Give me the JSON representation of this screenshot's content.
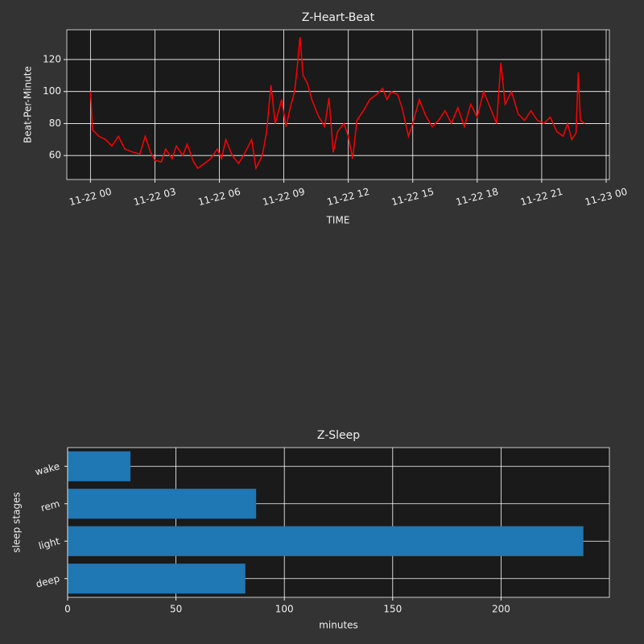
{
  "chart_data": [
    {
      "type": "line",
      "title": "Z-Heart-Beat",
      "x_label": "TIME",
      "y_label": "Beat-Per-Minute",
      "x": [
        0.0,
        0.1,
        0.4,
        0.7,
        1.0,
        1.3,
        1.6,
        2.0,
        2.3,
        2.55,
        2.8,
        3.0,
        3.3,
        3.5,
        3.8,
        4.0,
        4.3,
        4.5,
        4.8,
        5.0,
        5.3,
        5.6,
        5.9,
        6.1,
        6.3,
        6.6,
        6.9,
        7.2,
        7.5,
        7.7,
        8.0,
        8.2,
        8.4,
        8.6,
        8.9,
        9.1,
        9.3,
        9.5,
        9.6,
        9.75,
        9.9,
        10.1,
        10.3,
        10.6,
        10.9,
        11.1,
        11.3,
        11.5,
        11.8,
        12.0,
        12.2,
        12.4,
        12.7,
        13.0,
        13.3,
        13.6,
        13.8,
        14.0,
        14.3,
        14.5,
        14.8,
        15.0,
        15.3,
        15.6,
        15.9,
        16.2,
        16.5,
        16.8,
        17.1,
        17.4,
        17.7,
        18.0,
        18.3,
        18.6,
        18.9,
        19.1,
        19.3,
        19.6,
        19.9,
        20.2,
        20.5,
        20.8,
        21.1,
        21.4,
        21.7,
        22.0,
        22.2,
        22.4,
        22.6,
        22.7,
        22.8,
        23.0
      ],
      "series": [
        {
          "name": "Beat-Per-Minute",
          "color": "#ff0000",
          "values": [
            100,
            76,
            72,
            70,
            66,
            72,
            64,
            62,
            61,
            72,
            62,
            57,
            56,
            64,
            58,
            66,
            60,
            67,
            56,
            52,
            55,
            58,
            64,
            58,
            70,
            60,
            55,
            62,
            70,
            52,
            60,
            75,
            104,
            80,
            95,
            78,
            90,
            100,
            112,
            134,
            110,
            105,
            95,
            85,
            78,
            96,
            62,
            75,
            80,
            72,
            58,
            82,
            88,
            95,
            98,
            102,
            95,
            100,
            98,
            90,
            72,
            80,
            95,
            85,
            78,
            82,
            88,
            80,
            90,
            78,
            92,
            84,
            100,
            90,
            80,
            118,
            92,
            100,
            86,
            82,
            88,
            82,
            80,
            84,
            75,
            72,
            80,
            70,
            74,
            112,
            82,
            80
          ]
        }
      ],
      "xlim": [
        -1.1,
        24.15
      ],
      "xticks": [
        {
          "value": 0,
          "label": "11-22 00"
        },
        {
          "value": 3,
          "label": "11-22 03"
        },
        {
          "value": 6,
          "label": "11-22 06"
        },
        {
          "value": 9,
          "label": "11-22 09"
        },
        {
          "value": 12,
          "label": "11-22 12"
        },
        {
          "value": 15,
          "label": "11-22 15"
        },
        {
          "value": 18,
          "label": "11-22 18"
        },
        {
          "value": 21,
          "label": "11-22 21"
        },
        {
          "value": 24,
          "label": "11-23 00"
        }
      ],
      "ylim": [
        45,
        138.6
      ],
      "yticks": [
        60,
        80,
        100,
        120
      ],
      "grid": true
    },
    {
      "type": "barh",
      "title": "Z-Sleep",
      "x_label": "minutes",
      "y_label": "sleep stages",
      "categories": [
        "deep",
        "light",
        "rem",
        "wake"
      ],
      "values": [
        82,
        238,
        87,
        29
      ],
      "color": "#1f77b4",
      "xlim": [
        0,
        250
      ],
      "xticks": [
        0,
        50,
        100,
        150,
        200
      ],
      "grid": true
    }
  ]
}
